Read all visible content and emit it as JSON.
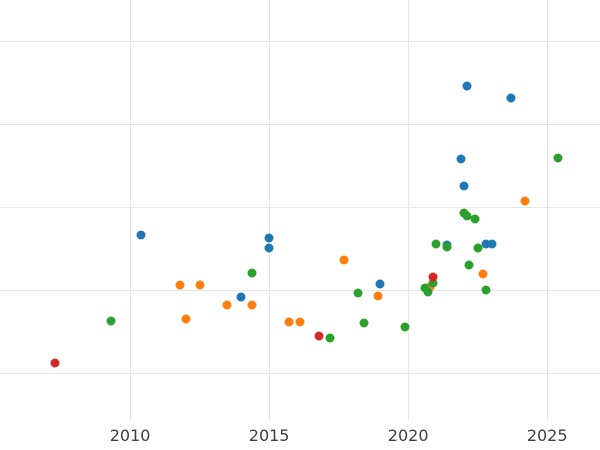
{
  "chart_data": {
    "type": "scatter",
    "title": "",
    "xlabel": "",
    "ylabel": "",
    "grid": true,
    "legend": "none",
    "x_ticks": [
      2010,
      2015,
      2020,
      2025
    ],
    "x_range": [
      2005.32,
      2026.9
    ],
    "y_range": [
      -0.566,
      4.494
    ],
    "y_gridlines": [
      0,
      1,
      2,
      3,
      4
    ],
    "point_colors": {
      "blue": "#1f77b4",
      "orange": "#ff7f0e",
      "green": "#2ca02c",
      "red": "#d62728"
    },
    "series": [
      {
        "name": "blue",
        "color": "#1f77b4",
        "points": [
          [
            2010.4,
            1.66
          ],
          [
            2014.0,
            0.92
          ],
          [
            2015.0,
            1.63
          ],
          [
            2015.0,
            1.51
          ],
          [
            2019.0,
            1.07
          ],
          [
            2021.4,
            1.54
          ],
          [
            2021.9,
            2.58
          ],
          [
            2022.1,
            3.46
          ],
          [
            2022.0,
            2.25
          ],
          [
            2022.8,
            1.55
          ],
          [
            2023.0,
            1.55
          ],
          [
            2023.7,
            3.31
          ]
        ]
      },
      {
        "name": "orange",
        "color": "#ff7f0e",
        "points": [
          [
            2011.8,
            1.06
          ],
          [
            2012.0,
            0.65
          ],
          [
            2012.5,
            1.06
          ],
          [
            2013.5,
            0.82
          ],
          [
            2014.4,
            0.82
          ],
          [
            2015.7,
            0.61
          ],
          [
            2016.1,
            0.61
          ],
          [
            2017.7,
            1.36
          ],
          [
            2018.9,
            0.93
          ],
          [
            2020.8,
            1.04
          ],
          [
            2022.7,
            1.19
          ],
          [
            2024.2,
            2.07
          ]
        ]
      },
      {
        "name": "green",
        "color": "#2ca02c",
        "points": [
          [
            2009.3,
            0.63
          ],
          [
            2014.4,
            1.2
          ],
          [
            2017.2,
            0.42
          ],
          [
            2018.2,
            0.96
          ],
          [
            2018.4,
            0.6
          ],
          [
            2019.9,
            0.55
          ],
          [
            2020.6,
            1.02
          ],
          [
            2020.7,
            0.98
          ],
          [
            2020.9,
            1.08
          ],
          [
            2021.0,
            1.56
          ],
          [
            2021.4,
            1.52
          ],
          [
            2022.0,
            1.93
          ],
          [
            2022.1,
            1.89
          ],
          [
            2022.2,
            1.3
          ],
          [
            2022.4,
            1.86
          ],
          [
            2022.5,
            1.51
          ],
          [
            2022.8,
            1.0
          ],
          [
            2025.4,
            2.59
          ]
        ]
      },
      {
        "name": "red",
        "color": "#d62728",
        "points": [
          [
            2007.3,
            0.12
          ],
          [
            2016.8,
            0.45
          ],
          [
            2020.9,
            1.16
          ]
        ]
      }
    ]
  },
  "axis": {
    "tick_labels": [
      "2010",
      "2015",
      "2020",
      "2025"
    ]
  },
  "colors": {
    "background": "#ffffff",
    "grid": "#e5e5e5",
    "tick_text": "#3f3f3f"
  }
}
